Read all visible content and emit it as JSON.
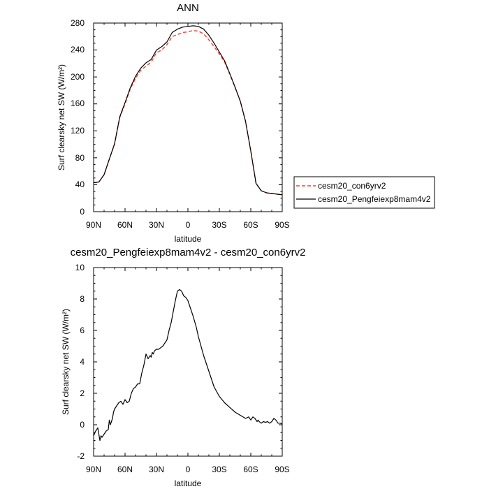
{
  "colors": {
    "control": "#ff3b30",
    "experiment": "#000000"
  },
  "chart_data": [
    {
      "type": "line",
      "title": "ANN",
      "xlabel": "latitude",
      "ylabel": "Surf clearsky net SW (W/m²)",
      "xlim": [
        -90,
        90
      ],
      "ylim": [
        0,
        280
      ],
      "x_reversed": true,
      "xticks": [
        -90,
        -60,
        -30,
        0,
        30,
        60,
        90
      ],
      "xticklabels": [
        "90N",
        "60N",
        "30N",
        "0",
        "30S",
        "60S",
        "90S"
      ],
      "yticks": [
        0,
        40,
        80,
        120,
        160,
        200,
        240,
        280
      ],
      "yticklabels": [
        "0",
        "40",
        "80",
        "120",
        "160",
        "200",
        "240",
        "280"
      ],
      "legend_position": "right",
      "series": [
        {
          "name": "cesm20_con6yrv2",
          "style": "dashed",
          "x": [
            -90,
            -85,
            -80,
            -75,
            -70,
            -65,
            -60,
            -55,
            -50,
            -45,
            -40,
            -35,
            -30,
            -25,
            -20,
            -15,
            -10,
            -5,
            0,
            5,
            10,
            15,
            20,
            25,
            30,
            35,
            40,
            45,
            50,
            55,
            60,
            65,
            70,
            75,
            80,
            85,
            90
          ],
          "y": [
            43,
            44,
            55,
            78,
            100,
            140,
            160,
            182,
            198,
            210,
            216,
            222,
            236,
            240,
            248,
            260,
            263,
            266,
            267,
            269,
            268,
            264,
            255,
            245,
            234,
            222,
            204,
            184,
            164,
            134,
            90,
            42,
            31,
            28,
            27,
            26,
            25
          ]
        },
        {
          "name": "cesm20_Pengfeiexp8mam4v2",
          "style": "solid",
          "x": [
            -90,
            -85,
            -80,
            -75,
            -70,
            -65,
            -60,
            -55,
            -50,
            -45,
            -40,
            -35,
            -30,
            -25,
            -20,
            -15,
            -10,
            -5,
            0,
            5,
            10,
            15,
            20,
            25,
            30,
            35,
            40,
            45,
            50,
            55,
            60,
            65,
            70,
            75,
            80,
            85,
            90
          ],
          "y": [
            43,
            44,
            55,
            78,
            101,
            141,
            162,
            184,
            201,
            213,
            221,
            226,
            240,
            245,
            252,
            266,
            271,
            274,
            275,
            276,
            275,
            271,
            262,
            250,
            237,
            224,
            205,
            185,
            164,
            134,
            90,
            42,
            31,
            28,
            27,
            26,
            25
          ]
        }
      ]
    },
    {
      "type": "line",
      "title": "cesm20_Pengfeiexp8mam4v2 - cesm20_con6yrv2",
      "xlabel": "latitude",
      "ylabel": "Surf clearsky net SW (W/m²)",
      "xlim": [
        -90,
        90
      ],
      "ylim": [
        -2,
        10
      ],
      "x_reversed": true,
      "xticks": [
        -90,
        -60,
        -30,
        0,
        30,
        60,
        90
      ],
      "xticklabels": [
        "90N",
        "60N",
        "30N",
        "0",
        "30S",
        "60S",
        "90S"
      ],
      "yticks": [
        -2,
        0,
        2,
        4,
        6,
        8,
        10
      ],
      "yticklabels": [
        "-2",
        "0",
        "2",
        "4",
        "6",
        "8",
        "10"
      ],
      "series": [
        {
          "style": "solid",
          "x": [
            -90,
            -88,
            -86,
            -84,
            -83,
            -82,
            -80,
            -78,
            -76,
            -75,
            -74,
            -72,
            -71,
            -70,
            -68,
            -66,
            -64,
            -62,
            -60,
            -58,
            -56,
            -54,
            -52,
            -50,
            -48,
            -46,
            -44,
            -42,
            -40,
            -38,
            -36,
            -35,
            -34,
            -33,
            -32,
            -30,
            -28,
            -26,
            -24,
            -22,
            -20,
            -18,
            -16,
            -14,
            -12,
            -10,
            -8,
            -6,
            -4,
            -2,
            0,
            2,
            5,
            8,
            10,
            15,
            20,
            25,
            30,
            35,
            40,
            45,
            50,
            55,
            58,
            60,
            62,
            64,
            66,
            67,
            68,
            70,
            72,
            74,
            76,
            78,
            80,
            82,
            84,
            86,
            88,
            90
          ],
          "y": [
            -0.7,
            -0.4,
            -0.2,
            -1.0,
            -0.7,
            -0.8,
            -0.6,
            -0.4,
            -0.3,
            0.3,
            0.0,
            0.4,
            0.8,
            1.0,
            1.2,
            1.4,
            1.5,
            1.3,
            1.6,
            1.4,
            1.5,
            2.0,
            2.3,
            2.4,
            2.6,
            2.6,
            3.3,
            3.8,
            4.5,
            4.2,
            4.4,
            4.3,
            4.6,
            4.5,
            4.7,
            4.8,
            4.8,
            4.9,
            5.0,
            5.2,
            5.4,
            6.0,
            6.5,
            7.2,
            7.9,
            8.5,
            8.6,
            8.5,
            8.2,
            8.1,
            7.9,
            7.5,
            6.9,
            6.2,
            5.6,
            4.4,
            3.4,
            2.4,
            1.8,
            1.4,
            1.1,
            0.8,
            0.6,
            0.4,
            0.5,
            0.3,
            0.5,
            0.4,
            0.2,
            0.3,
            0.2,
            0.1,
            0.2,
            0.15,
            0.2,
            0.1,
            0.2,
            0.4,
            0.3,
            0.1,
            0.1,
            0.05
          ]
        }
      ]
    }
  ]
}
